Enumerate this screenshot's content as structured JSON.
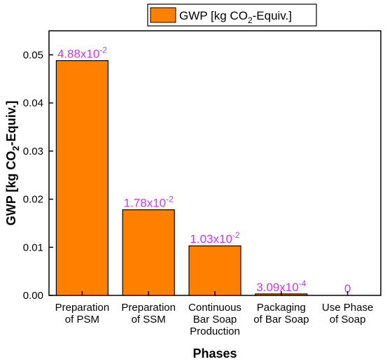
{
  "chart_data": {
    "type": "bar",
    "title": "",
    "xlabel": "Phases",
    "ylabel": {
      "prefix": "GWP [kg CO",
      "sub": "2",
      "suffix": "-Equiv.]"
    },
    "categories": [
      [
        "Preparation",
        "of PSM"
      ],
      [
        "Preparation",
        "of SSM"
      ],
      [
        "Continuous",
        "Bar Soap",
        "Production"
      ],
      [
        "Packaging",
        "of Bar Soap"
      ],
      [
        "Use Phase",
        "of Soap"
      ]
    ],
    "series": [
      {
        "name": {
          "prefix": "GWP [kg CO",
          "sub": "2",
          "suffix": "-Equiv.]"
        },
        "values": [
          0.0488,
          0.0178,
          0.0103,
          0.000309,
          0
        ]
      }
    ],
    "data_labels": [
      {
        "mant": "4.88x10",
        "exp": "-2"
      },
      {
        "mant": "1.78x10",
        "exp": "-2"
      },
      {
        "mant": "1.03x10",
        "exp": "-2"
      },
      {
        "mant": "3.09x10",
        "exp": "-4"
      },
      {
        "mant": "0",
        "exp": ""
      }
    ],
    "yticks": [
      "0.00",
      "0.01",
      "0.02",
      "0.03",
      "0.04",
      "0.05"
    ],
    "ylim": [
      0,
      0.055
    ],
    "legend_position": "top-center",
    "colors": {
      "bar_fill": "#ff8000",
      "bar_stroke": "#000000",
      "data_label": "#cc33ff",
      "legend_border": "#000000"
    }
  }
}
